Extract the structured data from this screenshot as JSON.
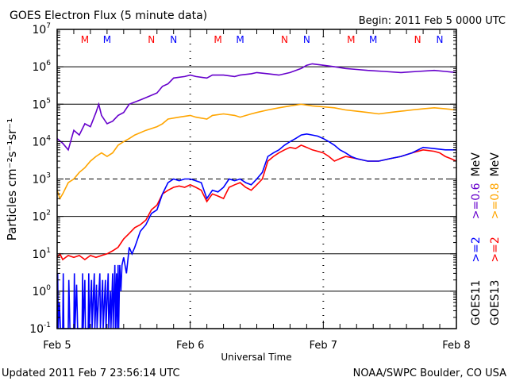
{
  "chart_data": {
    "type": "line",
    "title": "GOES Electron Flux (5 minute data)",
    "begin_label": "Begin: 2011 Feb 5 0000 UTC",
    "xlabel": "Universal Time",
    "ylabel": "Particles cm⁻²s⁻¹sr⁻¹",
    "y_scale": "log",
    "ylim": [
      0.1,
      10000000
    ],
    "x_unit": "hours since 2011 Feb 5 0000 UTC",
    "xlim": [
      0,
      72
    ],
    "x_ticks": [
      {
        "h": 0,
        "label": "Feb 5"
      },
      {
        "h": 24,
        "label": "Feb 6"
      },
      {
        "h": 48,
        "label": "Feb 7"
      },
      {
        "h": 72,
        "label": "Feb 8"
      }
    ],
    "y_ticks": [
      {
        "v": 0.1,
        "base": "10",
        "exp": "-1"
      },
      {
        "v": 1,
        "base": "10",
        "exp": "0"
      },
      {
        "v": 10,
        "base": "10",
        "exp": "1"
      },
      {
        "v": 100,
        "base": "10",
        "exp": "2"
      },
      {
        "v": 1000,
        "base": "10",
        "exp": "3"
      },
      {
        "v": 10000,
        "base": "10",
        "exp": "4"
      },
      {
        "v": 100000,
        "base": "10",
        "exp": "5"
      },
      {
        "v": 1000000,
        "base": "10",
        "exp": "6"
      },
      {
        "v": 10000000,
        "base": "10",
        "exp": "7"
      }
    ],
    "dashed_level": 1000,
    "grid": true,
    "markers": [
      {
        "h": 5,
        "label": "M",
        "color": "#ff0000"
      },
      {
        "h": 9,
        "label": "M",
        "color": "#0000ff"
      },
      {
        "h": 17,
        "label": "N",
        "color": "#ff0000"
      },
      {
        "h": 21,
        "label": "N",
        "color": "#0000ff"
      },
      {
        "h": 29,
        "label": "M",
        "color": "#ff0000"
      },
      {
        "h": 33,
        "label": "M",
        "color": "#0000ff"
      },
      {
        "h": 41,
        "label": "N",
        "color": "#ff0000"
      },
      {
        "h": 45,
        "label": "N",
        "color": "#0000ff"
      },
      {
        "h": 53,
        "label": "M",
        "color": "#ff0000"
      },
      {
        "h": 57,
        "label": "M",
        "color": "#0000ff"
      },
      {
        "h": 65,
        "label": "N",
        "color": "#ff0000"
      },
      {
        "h": 69,
        "label": "N",
        "color": "#0000ff"
      }
    ],
    "legend": {
      "goes11": {
        "label": "GOES11",
        "entries": [
          {
            "text": ">=2",
            "color": "#0000ff"
          },
          {
            "text": ">=0.6 MeV",
            "color": "#6600cc"
          }
        ]
      },
      "goes13": {
        "label": "GOES13",
        "entries": [
          {
            "text": ">=2",
            "color": "#ff0000"
          },
          {
            "text": ">=0.8 MeV",
            "color": "#ffa500"
          }
        ]
      }
    },
    "series": [
      {
        "name": "GOES11 >=0.6 MeV",
        "color": "#6600cc",
        "points": [
          [
            0,
            12000
          ],
          [
            1,
            9000
          ],
          [
            2,
            6000
          ],
          [
            3,
            20000
          ],
          [
            4,
            15000
          ],
          [
            5,
            30000
          ],
          [
            6,
            25000
          ],
          [
            7,
            60000
          ],
          [
            7.5,
            100000
          ],
          [
            8,
            50000
          ],
          [
            9,
            30000
          ],
          [
            10,
            35000
          ],
          [
            11,
            50000
          ],
          [
            12,
            60000
          ],
          [
            13,
            100000
          ],
          [
            15,
            130000
          ],
          [
            16,
            150000
          ],
          [
            18,
            200000
          ],
          [
            19,
            300000
          ],
          [
            20,
            350000
          ],
          [
            21,
            500000
          ],
          [
            23,
            550000
          ],
          [
            24,
            600000
          ],
          [
            25,
            550000
          ],
          [
            27,
            500000
          ],
          [
            28,
            600000
          ],
          [
            30,
            600000
          ],
          [
            32,
            550000
          ],
          [
            33,
            600000
          ],
          [
            35,
            650000
          ],
          [
            36,
            700000
          ],
          [
            38,
            650000
          ],
          [
            40,
            600000
          ],
          [
            42,
            700000
          ],
          [
            44,
            900000
          ],
          [
            45,
            1100000
          ],
          [
            46,
            1200000
          ],
          [
            48,
            1100000
          ],
          [
            50,
            1000000
          ],
          [
            52,
            900000
          ],
          [
            54,
            850000
          ],
          [
            56,
            800000
          ],
          [
            59,
            750000
          ],
          [
            62,
            700000
          ],
          [
            65,
            750000
          ],
          [
            68,
            800000
          ],
          [
            70,
            750000
          ],
          [
            72,
            700000
          ]
        ]
      },
      {
        "name": "GOES13 >=0.8 MeV",
        "color": "#ffa500",
        "points": [
          [
            0,
            500
          ],
          [
            0.5,
            300
          ],
          [
            1,
            400
          ],
          [
            2,
            800
          ],
          [
            3,
            1000
          ],
          [
            4,
            1500
          ],
          [
            5,
            2000
          ],
          [
            6,
            3000
          ],
          [
            7,
            4000
          ],
          [
            8,
            5000
          ],
          [
            9,
            4000
          ],
          [
            10,
            5000
          ],
          [
            11,
            8000
          ],
          [
            12,
            10000
          ],
          [
            13,
            12000
          ],
          [
            14,
            15000
          ],
          [
            16,
            20000
          ],
          [
            18,
            25000
          ],
          [
            19,
            30000
          ],
          [
            20,
            40000
          ],
          [
            22,
            45000
          ],
          [
            24,
            50000
          ],
          [
            25,
            45000
          ],
          [
            27,
            40000
          ],
          [
            28,
            50000
          ],
          [
            30,
            55000
          ],
          [
            32,
            50000
          ],
          [
            33,
            45000
          ],
          [
            35,
            55000
          ],
          [
            36,
            60000
          ],
          [
            38,
            70000
          ],
          [
            40,
            80000
          ],
          [
            42,
            90000
          ],
          [
            44,
            100000
          ],
          [
            46,
            90000
          ],
          [
            48,
            85000
          ],
          [
            50,
            80000
          ],
          [
            52,
            70000
          ],
          [
            54,
            65000
          ],
          [
            56,
            60000
          ],
          [
            58,
            55000
          ],
          [
            60,
            60000
          ],
          [
            62,
            65000
          ],
          [
            64,
            70000
          ],
          [
            66,
            75000
          ],
          [
            68,
            80000
          ],
          [
            70,
            75000
          ],
          [
            72,
            70000
          ]
        ]
      },
      {
        "name": "GOES13 >=2 MeV",
        "color": "#ff0000",
        "points": [
          [
            0,
            8
          ],
          [
            0.5,
            10
          ],
          [
            1,
            7
          ],
          [
            2,
            9
          ],
          [
            3,
            8
          ],
          [
            4,
            9
          ],
          [
            5,
            7
          ],
          [
            6,
            9
          ],
          [
            7,
            8
          ],
          [
            8,
            9
          ],
          [
            9,
            10
          ],
          [
            10,
            12
          ],
          [
            11,
            15
          ],
          [
            12,
            25
          ],
          [
            13,
            35
          ],
          [
            14,
            50
          ],
          [
            15,
            60
          ],
          [
            16,
            80
          ],
          [
            17,
            150
          ],
          [
            18,
            200
          ],
          [
            19,
            400
          ],
          [
            20,
            500
          ],
          [
            21,
            600
          ],
          [
            22,
            650
          ],
          [
            23,
            600
          ],
          [
            24,
            700
          ],
          [
            25,
            600
          ],
          [
            26,
            500
          ],
          [
            27,
            250
          ],
          [
            28,
            400
          ],
          [
            29,
            350
          ],
          [
            30,
            300
          ],
          [
            31,
            600
          ],
          [
            32,
            700
          ],
          [
            33,
            800
          ],
          [
            34,
            600
          ],
          [
            35,
            500
          ],
          [
            36,
            700
          ],
          [
            37,
            1000
          ],
          [
            38,
            3000
          ],
          [
            39,
            4000
          ],
          [
            40,
            5000
          ],
          [
            41,
            6000
          ],
          [
            42,
            7000
          ],
          [
            43,
            6500
          ],
          [
            44,
            8000
          ],
          [
            45,
            7000
          ],
          [
            46,
            6000
          ],
          [
            47,
            5500
          ],
          [
            48,
            5000
          ],
          [
            49,
            4000
          ],
          [
            50,
            3000
          ],
          [
            51,
            3500
          ],
          [
            52,
            4000
          ],
          [
            54,
            3500
          ],
          [
            56,
            3000
          ],
          [
            58,
            3000
          ],
          [
            60,
            3500
          ],
          [
            62,
            4000
          ],
          [
            64,
            5000
          ],
          [
            66,
            6000
          ],
          [
            68,
            5500
          ],
          [
            69,
            5000
          ],
          [
            70,
            4000
          ],
          [
            71,
            3500
          ],
          [
            72,
            3000
          ]
        ]
      },
      {
        "name": "GOES11 >=2 MeV",
        "color": "#0000ff",
        "points": [
          [
            0,
            0.1
          ],
          [
            0.1,
            3
          ],
          [
            0.2,
            0.1
          ],
          [
            0.4,
            0.5
          ],
          [
            0.6,
            0.1
          ],
          [
            1,
            0.1
          ],
          [
            1.1,
            3
          ],
          [
            1.2,
            0.1
          ],
          [
            2,
            0.1
          ],
          [
            2.1,
            2
          ],
          [
            2.3,
            0.1
          ],
          [
            3,
            0.1
          ],
          [
            3.1,
            3
          ],
          [
            3.2,
            0.1
          ],
          [
            3.5,
            1.5
          ],
          [
            3.7,
            0.1
          ],
          [
            4.5,
            0.1
          ],
          [
            4.6,
            3
          ],
          [
            4.7,
            0.1
          ],
          [
            5,
            2
          ],
          [
            5.1,
            0.1
          ],
          [
            5.6,
            0.1
          ],
          [
            5.7,
            3
          ],
          [
            5.8,
            0.1
          ],
          [
            6.2,
            2
          ],
          [
            6.3,
            0.1
          ],
          [
            6.7,
            3
          ],
          [
            6.8,
            0.1
          ],
          [
            7.1,
            1.5
          ],
          [
            7.2,
            0.1
          ],
          [
            7.7,
            3
          ],
          [
            7.8,
            0.1
          ],
          [
            8.2,
            2
          ],
          [
            8.3,
            0.1
          ],
          [
            8.7,
            2
          ],
          [
            8.8,
            0.1
          ],
          [
            9.2,
            3
          ],
          [
            9.3,
            0.1
          ],
          [
            9.6,
            1
          ],
          [
            9.7,
            0.1
          ],
          [
            10,
            3
          ],
          [
            10.1,
            0.1
          ],
          [
            10.4,
            5
          ],
          [
            10.5,
            0.1
          ],
          [
            10.7,
            3
          ],
          [
            10.8,
            0.1
          ],
          [
            11,
            5
          ],
          [
            11.1,
            0.1
          ],
          [
            11.3,
            5
          ],
          [
            11.5,
            1
          ],
          [
            11.7,
            5
          ],
          [
            12,
            8
          ],
          [
            12.5,
            3
          ],
          [
            13,
            15
          ],
          [
            13.5,
            10
          ],
          [
            14,
            15
          ],
          [
            15,
            40
          ],
          [
            16,
            60
          ],
          [
            17,
            120
          ],
          [
            18,
            150
          ],
          [
            19,
            400
          ],
          [
            20,
            800
          ],
          [
            21,
            1000
          ],
          [
            22,
            900
          ],
          [
            23,
            1000
          ],
          [
            24,
            1000
          ],
          [
            25,
            900
          ],
          [
            26,
            800
          ],
          [
            27,
            300
          ],
          [
            28,
            500
          ],
          [
            29,
            450
          ],
          [
            30,
            600
          ],
          [
            31,
            1000
          ],
          [
            32,
            900
          ],
          [
            33,
            1000
          ],
          [
            34,
            800
          ],
          [
            35,
            700
          ],
          [
            36,
            1000
          ],
          [
            37,
            1500
          ],
          [
            38,
            4000
          ],
          [
            39,
            5000
          ],
          [
            40,
            6000
          ],
          [
            41,
            8000
          ],
          [
            42,
            10000
          ],
          [
            43,
            12000
          ],
          [
            44,
            15000
          ],
          [
            45,
            16000
          ],
          [
            46,
            15000
          ],
          [
            47,
            14000
          ],
          [
            48,
            12000
          ],
          [
            49,
            10000
          ],
          [
            50,
            8000
          ],
          [
            51,
            6000
          ],
          [
            52,
            5000
          ],
          [
            53,
            4000
          ],
          [
            54,
            3500
          ],
          [
            56,
            3000
          ],
          [
            58,
            3000
          ],
          [
            60,
            3500
          ],
          [
            62,
            4000
          ],
          [
            64,
            5000
          ],
          [
            66,
            7000
          ],
          [
            68,
            6500
          ],
          [
            70,
            6000
          ],
          [
            72,
            6000
          ]
        ]
      }
    ]
  },
  "footer": {
    "updated": "Updated 2011 Feb  7 23:56:14 UTC",
    "credit": "NOAA/SWPC Boulder, CO USA"
  }
}
